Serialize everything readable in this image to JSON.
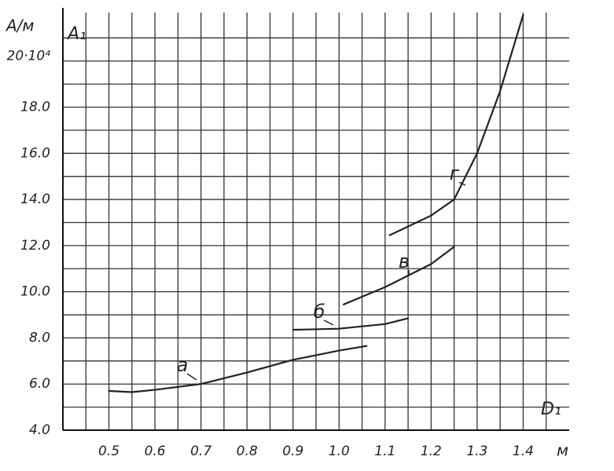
{
  "chart_data": {
    "type": "line",
    "y_label": "A/м",
    "y_symbol": "A₁",
    "x_label": "D₁",
    "x_unit": "м",
    "xlim": [
      0.4,
      1.5
    ],
    "ylim": [
      4,
      22.1
    ],
    "xticks": [
      0.5,
      0.6,
      0.7,
      0.8,
      0.9,
      {
        "value": 1.0,
        "label": "1.0"
      },
      1.1,
      1.2,
      1.3,
      1.4
    ],
    "xminor": [
      0.45,
      0.55,
      0.65,
      0.75,
      0.85,
      0.95,
      1.05,
      1.15,
      1.25,
      1.35,
      1.45
    ],
    "yticks": [
      {
        "value": 4,
        "label": "4.0"
      },
      {
        "value": 6,
        "label": "6.0"
      },
      {
        "value": 8,
        "label": "8.0"
      },
      {
        "value": 10,
        "label": "10.0"
      },
      {
        "value": 12,
        "label": "12.0"
      },
      {
        "value": 14,
        "label": "14.0"
      },
      {
        "value": 16,
        "label": "16.0"
      },
      {
        "value": 18,
        "label": "18.0"
      },
      {
        "value": 20,
        "label": "20·10⁴"
      }
    ],
    "yminor": [
      5,
      7,
      9,
      11,
      13,
      15,
      17,
      19,
      21
    ],
    "grid": true,
    "series": [
      {
        "name": "а",
        "color": "#222",
        "x": [
          0.5,
          0.55,
          0.6,
          0.7,
          0.8,
          0.9,
          1.0,
          1.06
        ],
        "values": [
          5.7,
          5.65,
          5.75,
          6.0,
          6.5,
          7.05,
          7.45,
          7.65
        ]
      },
      {
        "name": "б",
        "color": "#222",
        "x": [
          0.9,
          1.0,
          1.1,
          1.15
        ],
        "values": [
          8.35,
          8.4,
          8.6,
          8.85
        ]
      },
      {
        "name": "в",
        "color": "#222",
        "x": [
          1.01,
          1.1,
          1.2,
          1.25
        ],
        "values": [
          9.45,
          10.2,
          11.2,
          11.95
        ]
      },
      {
        "name": "г",
        "color": "#222",
        "x": [
          1.11,
          1.2,
          1.25,
          1.3,
          1.35,
          1.4
        ],
        "values": [
          12.45,
          13.3,
          14.0,
          16.0,
          18.7,
          22.0
        ]
      }
    ]
  }
}
